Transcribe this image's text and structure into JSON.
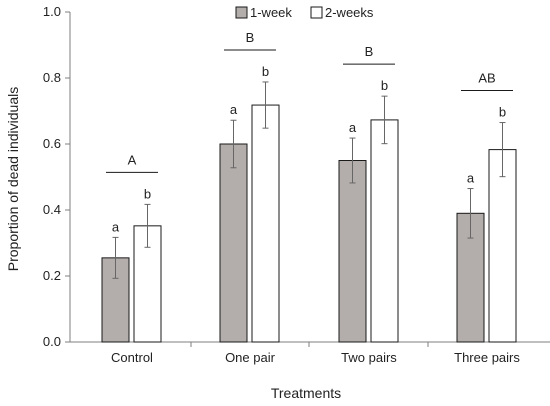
{
  "chart_data": {
    "type": "bar",
    "xlabel": "Treatments",
    "ylabel": "Proportion of dead individuals",
    "ylim": [
      0,
      1.0
    ],
    "yticks": [
      "0.0",
      "0.2",
      "0.4",
      "0.6",
      "0.8",
      "1.0"
    ],
    "categories": [
      "Control",
      "One pair",
      "Two pairs",
      "Three pairs"
    ],
    "legend_position": "top-center",
    "grid": false,
    "series": [
      {
        "name": "1-week",
        "color": "#b3adab",
        "values": [
          0.255,
          0.6,
          0.55,
          0.39
        ],
        "errors": [
          0.062,
          0.072,
          0.068,
          0.075
        ],
        "labels": [
          "a",
          "a",
          "a",
          "a"
        ]
      },
      {
        "name": "2-weeks",
        "color": "#ffffff",
        "values": [
          0.352,
          0.718,
          0.673,
          0.583
        ],
        "errors": [
          0.065,
          0.07,
          0.072,
          0.082
        ],
        "labels": [
          "b",
          "b",
          "b",
          "b"
        ]
      }
    ],
    "group_letters": [
      "A",
      "B",
      "B",
      "AB"
    ]
  }
}
